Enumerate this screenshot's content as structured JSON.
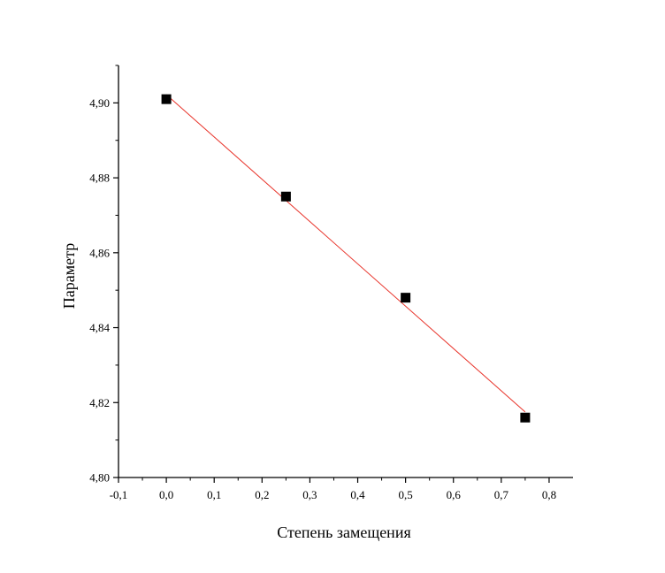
{
  "chart_data": {
    "type": "scatter",
    "xlabel": "Степень замещения",
    "ylabel": "Параметр",
    "xlim": [
      -0.1,
      0.85
    ],
    "ylim": [
      4.8,
      4.91
    ],
    "x_ticks": [
      {
        "value": -0.1,
        "label": "-0,1"
      },
      {
        "value": 0.0,
        "label": "0,0"
      },
      {
        "value": 0.1,
        "label": "0,1"
      },
      {
        "value": 0.2,
        "label": "0,2"
      },
      {
        "value": 0.3,
        "label": "0,3"
      },
      {
        "value": 0.4,
        "label": "0,4"
      },
      {
        "value": 0.5,
        "label": "0,5"
      },
      {
        "value": 0.6,
        "label": "0,6"
      },
      {
        "value": 0.7,
        "label": "0,7"
      },
      {
        "value": 0.8,
        "label": "0,8"
      }
    ],
    "y_ticks": [
      {
        "value": 4.8,
        "label": "4,80"
      },
      {
        "value": 4.82,
        "label": "4,82"
      },
      {
        "value": 4.84,
        "label": "4,84"
      },
      {
        "value": 4.86,
        "label": "4,86"
      },
      {
        "value": 4.88,
        "label": "4,88"
      },
      {
        "value": 4.9,
        "label": "4,90"
      }
    ],
    "grid": false,
    "series": [
      {
        "marker": "square",
        "color": "#000000",
        "points": [
          {
            "x": 0.0,
            "y": 4.901
          },
          {
            "x": 0.25,
            "y": 4.875
          },
          {
            "x": 0.5,
            "y": 4.848
          },
          {
            "x": 0.75,
            "y": 4.816
          }
        ]
      }
    ],
    "fit_line": {
      "color": "#e8332a",
      "x": [
        0.0,
        0.75
      ],
      "y": [
        4.9022,
        4.8175
      ]
    }
  }
}
